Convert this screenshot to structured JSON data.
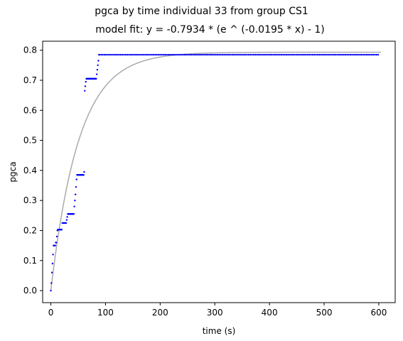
{
  "chart_data": {
    "type": "scatter",
    "suptitle": "pgca by time individual 33 from group CS1",
    "title": "model fit: y = -0.7934 * (e ^ (-0.0195 * x) - 1)",
    "xlabel": "time (s)",
    "ylabel": "pgca",
    "xlim": [
      -15,
      630
    ],
    "ylim": [
      -0.04,
      0.83
    ],
    "xticks": [
      0,
      100,
      200,
      300,
      400,
      500,
      600
    ],
    "yticks": [
      0.0,
      0.1,
      0.2,
      0.3,
      0.4,
      0.5,
      0.6,
      0.7,
      0.8
    ],
    "grid": false,
    "colors": {
      "points": "#0000ff",
      "fit": "#aaaaaa"
    },
    "fit": {
      "a": 0.7934,
      "b": 0.0195,
      "x_range": [
        0,
        605
      ]
    },
    "points_segments": [
      [
        [
          0,
          0.0
        ],
        [
          1,
          0.025
        ],
        [
          2,
          0.06
        ],
        [
          3,
          0.09
        ],
        [
          4,
          0.12
        ],
        [
          5,
          0.15
        ],
        [
          6,
          0.15
        ],
        [
          7,
          0.15
        ],
        [
          8,
          0.15
        ],
        [
          9,
          0.16
        ],
        [
          10,
          0.16
        ],
        [
          11,
          0.18
        ],
        [
          12,
          0.2
        ],
        [
          13,
          0.203
        ],
        [
          14,
          0.203
        ],
        [
          15,
          0.203
        ],
        [
          16,
          0.203
        ],
        [
          17,
          0.203
        ],
        [
          18,
          0.203
        ],
        [
          19,
          0.203
        ],
        [
          20,
          0.203
        ],
        [
          21,
          0.225
        ],
        [
          22,
          0.225
        ],
        [
          23,
          0.225
        ],
        [
          24,
          0.225
        ],
        [
          25,
          0.225
        ],
        [
          26,
          0.225
        ],
        [
          27,
          0.225
        ],
        [
          28,
          0.225
        ],
        [
          29,
          0.235
        ],
        [
          30,
          0.245
        ],
        [
          31,
          0.255
        ],
        [
          32,
          0.255
        ],
        [
          33,
          0.255
        ],
        [
          34,
          0.255
        ],
        [
          35,
          0.255
        ],
        [
          36,
          0.255
        ],
        [
          37,
          0.255
        ],
        [
          38,
          0.255
        ],
        [
          39,
          0.255
        ],
        [
          40,
          0.255
        ],
        [
          41,
          0.255
        ],
        [
          42,
          0.255
        ],
        [
          43,
          0.28
        ],
        [
          44,
          0.3
        ],
        [
          45,
          0.32
        ],
        [
          46,
          0.345
        ],
        [
          47,
          0.37
        ],
        [
          48,
          0.385
        ],
        [
          49,
          0.385
        ],
        [
          50,
          0.385
        ],
        [
          51,
          0.385
        ],
        [
          52,
          0.385
        ],
        [
          53,
          0.385
        ],
        [
          54,
          0.385
        ],
        [
          55,
          0.385
        ],
        [
          56,
          0.385
        ],
        [
          57,
          0.385
        ],
        [
          58,
          0.385
        ],
        [
          59,
          0.385
        ],
        [
          60,
          0.385
        ],
        [
          61,
          0.395
        ],
        [
          62,
          0.665
        ],
        [
          63,
          0.68
        ],
        [
          64,
          0.695
        ],
        [
          65,
          0.705
        ],
        [
          66,
          0.705
        ],
        [
          67,
          0.705
        ],
        [
          68,
          0.705
        ],
        [
          69,
          0.705
        ],
        [
          70,
          0.705
        ],
        [
          71,
          0.705
        ],
        [
          72,
          0.705
        ],
        [
          73,
          0.705
        ],
        [
          74,
          0.705
        ],
        [
          75,
          0.705
        ],
        [
          76,
          0.705
        ],
        [
          77,
          0.705
        ],
        [
          78,
          0.705
        ],
        [
          79,
          0.705
        ],
        [
          80,
          0.705
        ],
        [
          81,
          0.705
        ],
        [
          82,
          0.705
        ],
        [
          83,
          0.705
        ],
        [
          84,
          0.72
        ],
        [
          85,
          0.735
        ],
        [
          86,
          0.75
        ],
        [
          87,
          0.765
        ],
        [
          88,
          0.785
        ]
      ],
      {
        "x_from": 89,
        "x_to": 600,
        "step": 3,
        "y": 0.785
      }
    ]
  }
}
